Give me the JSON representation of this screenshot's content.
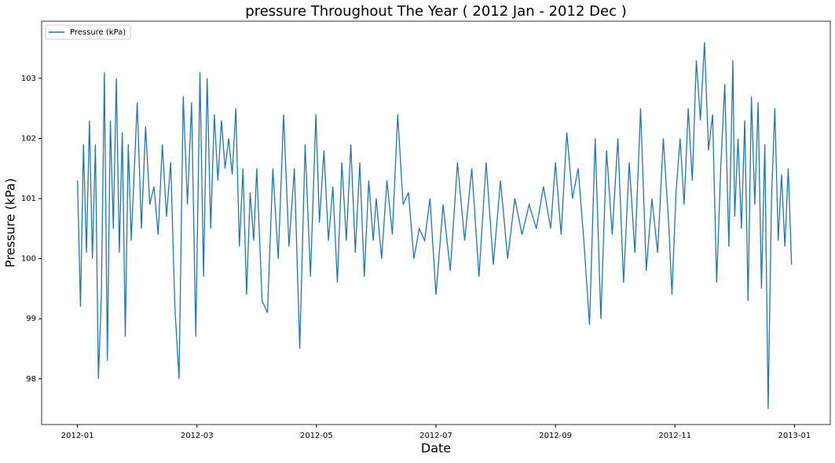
{
  "chart_data": {
    "type": "line",
    "title": "pressure Throughout The Year ( 2012 Jan - 2012 Dec )",
    "x_label": "Date",
    "y_label": "Pressure (kPa)",
    "legend": "upper left",
    "grid": false,
    "xlim": [
      0.4,
      13.6
    ],
    "xticks": [
      {
        "value": 1,
        "label": "2012-01"
      },
      {
        "value": 3,
        "label": "2012-03"
      },
      {
        "value": 5,
        "label": "2012-05"
      },
      {
        "value": 7,
        "label": "2012-07"
      },
      {
        "value": 9,
        "label": "2012-09"
      },
      {
        "value": 11,
        "label": "2012-11"
      },
      {
        "value": 13,
        "label": "2013-01"
      }
    ],
    "ylim": [
      97.24,
      103.95
    ],
    "yticks": [
      98,
      99,
      100,
      101,
      102,
      103
    ],
    "x": [
      1.0,
      1.05,
      1.1,
      1.15,
      1.2,
      1.25,
      1.3,
      1.35,
      1.4,
      1.45,
      1.5,
      1.55,
      1.6,
      1.65,
      1.7,
      1.75,
      1.8,
      1.85,
      1.9,
      2.0,
      2.07,
      2.14,
      2.21,
      2.28,
      2.35,
      2.42,
      2.49,
      2.56,
      2.63,
      2.7,
      2.77,
      2.84,
      2.91,
      2.98,
      3.05,
      3.11,
      3.17,
      3.23,
      3.29,
      3.35,
      3.41,
      3.47,
      3.53,
      3.59,
      3.65,
      3.71,
      3.77,
      3.83,
      3.89,
      3.95,
      4.0,
      4.09,
      4.18,
      4.27,
      4.36,
      4.45,
      4.54,
      4.63,
      4.72,
      4.81,
      4.9,
      4.99,
      5.05,
      5.125,
      5.2,
      5.275,
      5.35,
      5.425,
      5.5,
      5.575,
      5.65,
      5.725,
      5.8,
      5.875,
      5.95,
      6.0,
      6.09,
      6.18,
      6.27,
      6.36,
      6.45,
      6.54,
      6.63,
      6.72,
      6.81,
      6.9,
      7.0,
      7.12,
      7.24,
      7.36,
      7.48,
      7.6,
      7.72,
      7.84,
      7.96,
      8.08,
      8.2,
      8.32,
      8.44,
      8.56,
      8.68,
      8.8,
      8.92,
      9.0,
      9.095,
      9.19,
      9.285,
      9.38,
      9.475,
      9.57,
      9.665,
      9.76,
      9.855,
      9.95,
      10.045,
      10.14,
      10.235,
      10.33,
      10.425,
      10.52,
      10.615,
      10.71,
      10.805,
      10.9,
      10.95,
      11.018,
      11.086,
      11.154,
      11.222,
      11.29,
      11.358,
      11.426,
      11.494,
      11.562,
      11.63,
      11.698,
      11.766,
      11.834,
      11.902,
      11.97,
      12.0,
      12.056,
      12.112,
      12.168,
      12.224,
      12.28,
      12.336,
      12.392,
      12.448,
      12.504,
      12.56,
      12.616,
      12.672,
      12.728,
      12.784,
      12.84,
      12.896,
      12.952
    ],
    "series": [
      {
        "name": "Pressure (kPa)",
        "color": "#1f77b4",
        "values": [
          101.3,
          99.2,
          101.9,
          100.1,
          102.3,
          100.0,
          101.9,
          98.0,
          99.4,
          103.1,
          98.3,
          102.3,
          100.5,
          103.0,
          100.1,
          102.1,
          98.7,
          101.9,
          100.3,
          102.6,
          100.5,
          102.2,
          100.9,
          101.2,
          100.4,
          101.9,
          100.7,
          101.6,
          99.2,
          98.0,
          102.7,
          100.9,
          102.6,
          98.7,
          103.1,
          99.7,
          103.0,
          100.5,
          102.4,
          101.3,
          102.3,
          101.5,
          102.0,
          101.4,
          102.5,
          100.2,
          101.5,
          99.4,
          101.1,
          100.3,
          101.5,
          99.3,
          99.1,
          101.5,
          100.0,
          102.4,
          100.2,
          101.5,
          98.5,
          101.9,
          99.7,
          102.4,
          100.6,
          101.8,
          100.3,
          101.2,
          99.6,
          101.6,
          100.3,
          101.9,
          100.1,
          101.6,
          99.7,
          101.3,
          100.3,
          101.0,
          100.0,
          101.3,
          100.4,
          102.4,
          100.9,
          101.1,
          100.0,
          100.5,
          100.3,
          101.0,
          99.4,
          100.9,
          99.8,
          101.6,
          100.3,
          101.5,
          99.7,
          101.6,
          99.9,
          101.3,
          100.0,
          101.0,
          100.4,
          100.9,
          100.5,
          101.2,
          100.5,
          101.6,
          100.4,
          102.1,
          101.0,
          101.5,
          100.3,
          98.9,
          102.0,
          99.0,
          101.8,
          100.4,
          102.0,
          99.6,
          101.6,
          100.1,
          102.5,
          99.8,
          101.0,
          100.1,
          102.0,
          100.5,
          99.4,
          101.1,
          102.0,
          100.9,
          102.5,
          101.3,
          103.3,
          102.3,
          103.6,
          101.8,
          102.4,
          99.6,
          101.5,
          102.9,
          100.2,
          103.3,
          100.7,
          102.0,
          100.5,
          102.3,
          99.3,
          102.7,
          100.9,
          102.6,
          99.5,
          101.9,
          97.5,
          101.0,
          102.5,
          100.3,
          101.4,
          100.2,
          101.5,
          99.9
        ]
      }
    ]
  }
}
